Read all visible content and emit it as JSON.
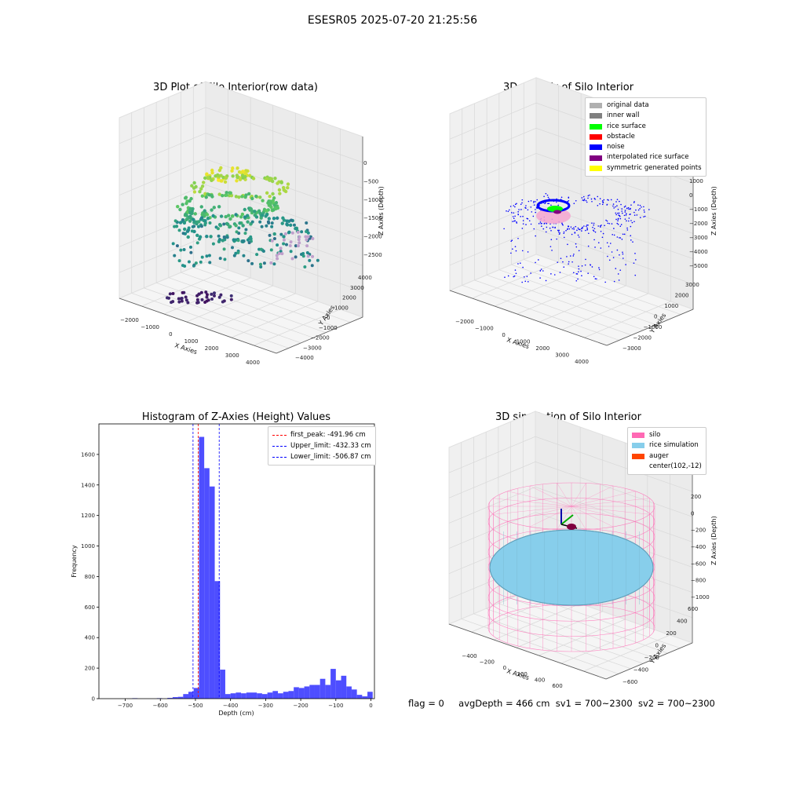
{
  "suptitle": "ESESR05 2025-07-20 21:25:56",
  "panels": {
    "raw": {
      "title": "3D Plot of Silo Interior(row data)",
      "xlabel": "X Axies",
      "ylabel": "Y Axies",
      "zlabel": "Z Axies (Depth)",
      "xticks": [
        "−2000",
        "−1000",
        "0",
        "1000",
        "2000",
        "3000",
        "4000"
      ],
      "yticks": [
        "−4000",
        "−3000",
        "−2000",
        "−1000",
        "0",
        "1000",
        "2000",
        "3000",
        "4000"
      ],
      "zticks": [
        "0",
        "−500",
        "−1000",
        "−1500",
        "−2000",
        "−2500"
      ]
    },
    "classify": {
      "title": "3D classify of Silo Interior",
      "xlabel": "X Axies",
      "ylabel": "Y Axies",
      "zlabel": "Z Axies (Depth)",
      "xticks": [
        "−2000",
        "−1000",
        "0",
        "1000",
        "2000",
        "3000",
        "4000"
      ],
      "yticks": [
        "−3000",
        "−2000",
        "−1000",
        "0",
        "1000",
        "2000",
        "3000"
      ],
      "zticks": [
        "2000",
        "1000",
        "0",
        "−1000",
        "−2000",
        "−3000",
        "−4000",
        "−5000"
      ],
      "legend": [
        {
          "label": "original data",
          "color": "#b0b0b0"
        },
        {
          "label": "inner wall",
          "color": "#808080"
        },
        {
          "label": "rice surface",
          "color": "#00ff00"
        },
        {
          "label": "obstacle",
          "color": "#ff0000"
        },
        {
          "label": "noise",
          "color": "#0000ff"
        },
        {
          "label": "interpolated rice surface",
          "color": "#800080"
        },
        {
          "label": "symmetric generated points",
          "color": "#ffff00"
        }
      ]
    },
    "sim": {
      "title": "3D simulation of Silo Interior",
      "xlabel": "X Axies",
      "ylabel": "Y Axies",
      "zlabel": "Z Axies (Depth)",
      "xticks": [
        "−400",
        "−200",
        "0",
        "200",
        "400",
        "600"
      ],
      "yticks": [
        "−600",
        "−400",
        "−200",
        "0",
        "200",
        "400",
        "600"
      ],
      "zticks": [
        "200",
        "0",
        "−200",
        "−400",
        "−600",
        "−800",
        "−1000"
      ],
      "legend": [
        {
          "label": "silo",
          "color": "#ff69b4"
        },
        {
          "label": "rice simulation",
          "color": "#87ceeb"
        },
        {
          "label": "auger",
          "color": "#ff4500"
        },
        {
          "label": "center(102,-12)",
          "color": "#ffffff"
        }
      ]
    }
  },
  "chart_data": [
    {
      "type": "histogram",
      "title": "Histogram of Z-Axies (Height) Values",
      "xlabel": "Depth (cm)",
      "ylabel": "Frequency",
      "xlim": [
        -775,
        10
      ],
      "ylim": [
        0,
        1800
      ],
      "xticks": [
        -700,
        -600,
        -500,
        -400,
        -300,
        -200,
        -100,
        0
      ],
      "yticks": [
        0,
        200,
        400,
        600,
        800,
        1000,
        1200,
        1400,
        1600
      ],
      "bar_color": "#4444ff",
      "bins": [
        {
          "x0": -680,
          "x1": -665,
          "value": 3
        },
        {
          "x0": -610,
          "x1": -595,
          "value": 3
        },
        {
          "x0": -580,
          "x1": -565,
          "value": 5
        },
        {
          "x0": -565,
          "x1": -550,
          "value": 10
        },
        {
          "x0": -550,
          "x1": -535,
          "value": 12
        },
        {
          "x0": -535,
          "x1": -520,
          "value": 30
        },
        {
          "x0": -520,
          "x1": -505,
          "value": 45
        },
        {
          "x0": -505,
          "x1": -490,
          "value": 70
        },
        {
          "x0": -490,
          "x1": -475,
          "value": 1715
        },
        {
          "x0": -475,
          "x1": -460,
          "value": 1510
        },
        {
          "x0": -460,
          "x1": -445,
          "value": 1390
        },
        {
          "x0": -445,
          "x1": -430,
          "value": 770
        },
        {
          "x0": -430,
          "x1": -415,
          "value": 190
        },
        {
          "x0": -415,
          "x1": -400,
          "value": 30
        },
        {
          "x0": -400,
          "x1": -385,
          "value": 35
        },
        {
          "x0": -385,
          "x1": -370,
          "value": 40
        },
        {
          "x0": -370,
          "x1": -355,
          "value": 35
        },
        {
          "x0": -355,
          "x1": -340,
          "value": 40
        },
        {
          "x0": -340,
          "x1": -325,
          "value": 40
        },
        {
          "x0": -325,
          "x1": -310,
          "value": 35
        },
        {
          "x0": -310,
          "x1": -295,
          "value": 30
        },
        {
          "x0": -295,
          "x1": -280,
          "value": 40
        },
        {
          "x0": -280,
          "x1": -265,
          "value": 50
        },
        {
          "x0": -265,
          "x1": -250,
          "value": 35
        },
        {
          "x0": -250,
          "x1": -235,
          "value": 45
        },
        {
          "x0": -235,
          "x1": -220,
          "value": 50
        },
        {
          "x0": -220,
          "x1": -205,
          "value": 75
        },
        {
          "x0": -205,
          "x1": -190,
          "value": 70
        },
        {
          "x0": -190,
          "x1": -175,
          "value": 80
        },
        {
          "x0": -175,
          "x1": -160,
          "value": 90
        },
        {
          "x0": -160,
          "x1": -145,
          "value": 90
        },
        {
          "x0": -145,
          "x1": -130,
          "value": 130
        },
        {
          "x0": -130,
          "x1": -115,
          "value": 90
        },
        {
          "x0": -115,
          "x1": -100,
          "value": 195
        },
        {
          "x0": -100,
          "x1": -85,
          "value": 120
        },
        {
          "x0": -85,
          "x1": -70,
          "value": 150
        },
        {
          "x0": -70,
          "x1": -55,
          "value": 80
        },
        {
          "x0": -55,
          "x1": -40,
          "value": 60
        },
        {
          "x0": -40,
          "x1": -25,
          "value": 25
        },
        {
          "x0": -25,
          "x1": -10,
          "value": 15
        },
        {
          "x0": -10,
          "x1": 5,
          "value": 45
        }
      ],
      "vlines": [
        {
          "label": "first_peak: -491.96 cm",
          "x": -491.96,
          "color": "#ff0000"
        },
        {
          "label": "Upper_limit: -432.33 cm",
          "x": -432.33,
          "color": "#0000ff"
        },
        {
          "label": "Lower_limit: -506.87 cm",
          "x": -506.87,
          "color": "#0000ff"
        }
      ],
      "legend_position": "top-right"
    }
  ],
  "status": {
    "flag": "flag = 0",
    "avg": "avgDepth = 466 cm",
    "sv1": "sv1 = 700~2300",
    "sv2": "sv2 = 700~2300"
  }
}
